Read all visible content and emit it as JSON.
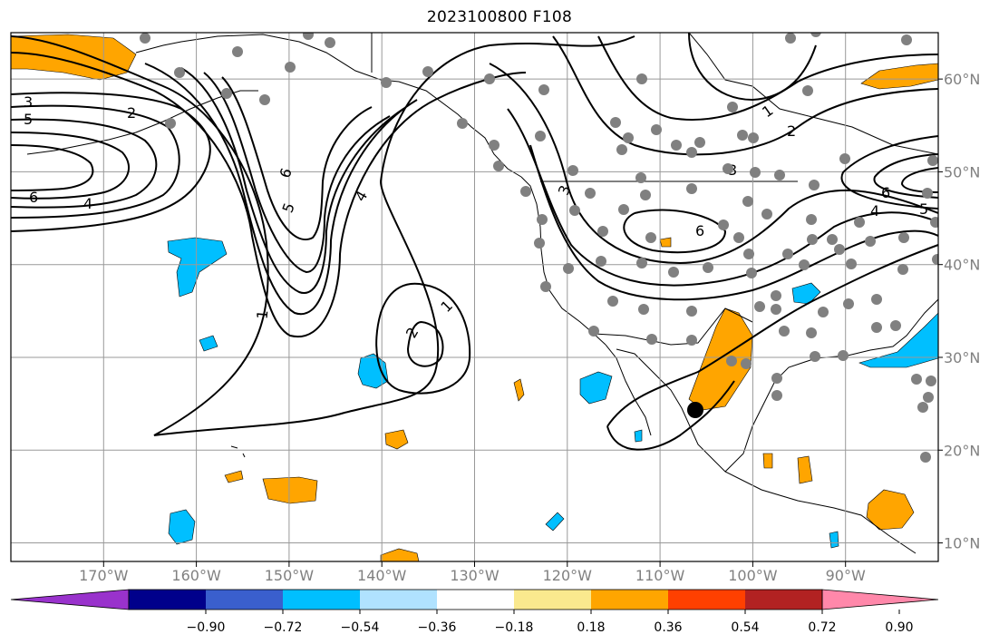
{
  "title": "2023100800 F108",
  "map": {
    "lon_min": -180,
    "lon_max": -80,
    "lat_min": 8,
    "lat_max": 65,
    "lon_ticks": [
      {
        "value": -170,
        "label": "170°W"
      },
      {
        "value": -160,
        "label": "160°W"
      },
      {
        "value": -150,
        "label": "150°W"
      },
      {
        "value": -140,
        "label": "140°W"
      },
      {
        "value": -130,
        "label": "130°W"
      },
      {
        "value": -120,
        "label": "120°W"
      },
      {
        "value": -110,
        "label": "110°W"
      },
      {
        "value": -100,
        "label": "100°W"
      },
      {
        "value": -90,
        "label": "90°W"
      }
    ],
    "lat_ticks": [
      {
        "value": 60,
        "label": "60°N"
      },
      {
        "value": 50,
        "label": "50°N"
      },
      {
        "value": 40,
        "label": "40°N"
      },
      {
        "value": 30,
        "label": "30°N"
      },
      {
        "value": 20,
        "label": "20°N"
      },
      {
        "value": 10,
        "label": "10°N"
      }
    ],
    "grid": true,
    "contour_labels": [
      "3",
      "5",
      "2",
      "6",
      "4",
      "6",
      "5",
      "4",
      "1",
      "1",
      "2",
      "3",
      "6",
      "1",
      "2",
      "3",
      "6",
      "4",
      "5"
    ],
    "marker_color": "#808080",
    "highlight_marker_color": "#000000"
  },
  "colorbar": {
    "colors": [
      "#9932cc",
      "#00008b",
      "#3a5fcd",
      "#00bfff",
      "#b0e2ff",
      "#ffffff",
      "#fae98e",
      "#ffa500",
      "#ff4000",
      "#b22222",
      "#ff88aa"
    ],
    "tick_labels": [
      "−0.90",
      "−0.72",
      "−0.54",
      "−0.36",
      "−0.18",
      "0.18",
      "0.36",
      "0.54",
      "0.72",
      "0.90"
    ],
    "extend": "both"
  }
}
